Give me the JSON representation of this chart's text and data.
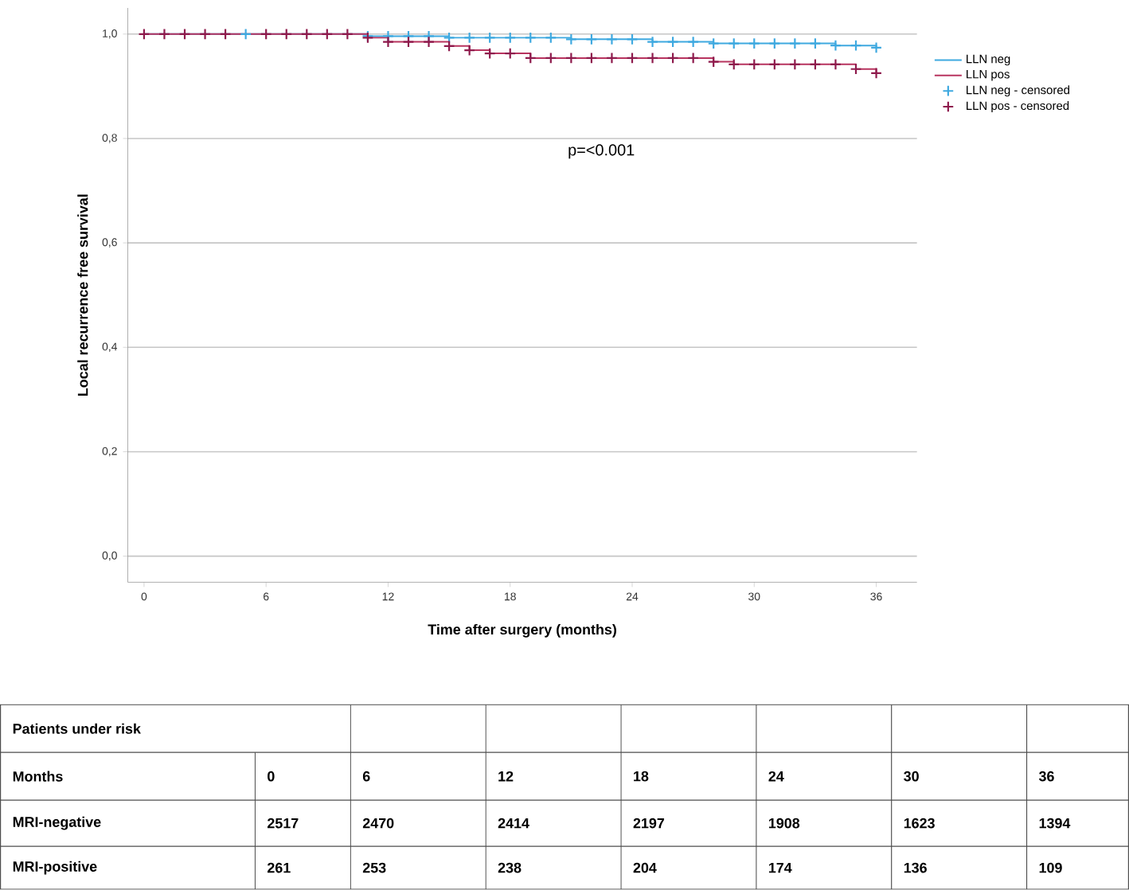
{
  "chart_data": {
    "type": "line",
    "xlabel": "Time after surgery (months)",
    "ylabel": "Local recurrence free survival",
    "xlim": [
      -0.8,
      38
    ],
    "ylim": [
      -0.05,
      1.05
    ],
    "xticks": [
      0,
      6,
      12,
      18,
      24,
      30,
      36
    ],
    "yticks": [
      {
        "value": 0,
        "label": "0,0"
      },
      {
        "value": 0.2,
        "label": "0,2"
      },
      {
        "value": 0.4,
        "label": "0,4"
      },
      {
        "value": 0.6,
        "label": "0,6"
      },
      {
        "value": 0.8,
        "label": "0,8"
      },
      {
        "value": 1.0,
        "label": "1,0"
      }
    ],
    "grid": "y",
    "legend": "right",
    "line_style": "solid",
    "series": [
      {
        "name": "LLN neg",
        "type": "step",
        "color": "#3fa9e0",
        "x": [
          0,
          11,
          15,
          21,
          25,
          28,
          34,
          36
        ],
        "values": [
          1,
          0.996,
          0.993,
          0.99,
          0.985,
          0.982,
          0.978,
          0.974
        ]
      },
      {
        "name": "LLN pos",
        "type": "step",
        "color": "#b8345f",
        "x": [
          0,
          11,
          12,
          15,
          16,
          17,
          19,
          28,
          29,
          35,
          36
        ],
        "values": [
          1,
          0.993,
          0.985,
          0.977,
          0.969,
          0.963,
          0.954,
          0.947,
          0.942,
          0.933,
          0.925
        ]
      },
      {
        "name": "LLN neg - censored",
        "type": "scatter",
        "marker": "cross",
        "color": "#3fa9e0",
        "x": [
          5,
          11,
          12,
          13,
          14,
          15,
          16,
          17,
          18,
          19,
          20,
          21,
          22,
          23,
          24,
          25,
          26,
          27,
          28,
          29,
          30,
          31,
          32,
          33,
          34,
          35,
          36
        ],
        "values": [
          1,
          0.996,
          0.996,
          0.996,
          0.996,
          0.993,
          0.993,
          0.993,
          0.993,
          0.993,
          0.993,
          0.99,
          0.99,
          0.99,
          0.99,
          0.985,
          0.985,
          0.985,
          0.982,
          0.982,
          0.982,
          0.982,
          0.982,
          0.982,
          0.978,
          0.978,
          0.974
        ]
      },
      {
        "name": "LLN pos - censored",
        "type": "scatter",
        "marker": "cross",
        "color": "#8e1a4c",
        "x": [
          0,
          1,
          2,
          3,
          4,
          6,
          7,
          8,
          9,
          10,
          11,
          12,
          13,
          14,
          15,
          16,
          17,
          18,
          19,
          20,
          21,
          22,
          23,
          24,
          25,
          26,
          27,
          28,
          29,
          30,
          31,
          32,
          33,
          34,
          35,
          36
        ],
        "values": [
          1,
          1,
          1,
          1,
          1,
          1,
          1,
          1,
          1,
          1,
          0.993,
          0.985,
          0.985,
          0.985,
          0.977,
          0.969,
          0.963,
          0.963,
          0.954,
          0.954,
          0.954,
          0.954,
          0.954,
          0.954,
          0.954,
          0.954,
          0.954,
          0.947,
          0.942,
          0.942,
          0.942,
          0.942,
          0.942,
          0.942,
          0.933,
          0.925
        ]
      }
    ],
    "annotations": [
      "p=<0.001",
      "Patients under risk",
      "Months",
      "0",
      "6",
      "12",
      "18",
      "24",
      "30",
      "36",
      "MRI-negative",
      "2517",
      "2470",
      "2414",
      "2197",
      "1908",
      "1623",
      "1394",
      "MRI-positive",
      "261",
      "253",
      "238",
      "204",
      "174",
      "136",
      "109"
    ]
  }
}
